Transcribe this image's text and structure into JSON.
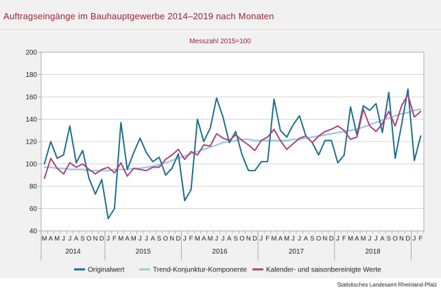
{
  "title": "Auftragseingänge im Bauhauptgewerbe 2014–2019 nach Monaten",
  "source": "Statistisches Landesamt Rheinland-Pfalz",
  "chart_data": {
    "type": "line",
    "subtitle": "Messzahl 2015=100",
    "ylim": [
      40,
      200
    ],
    "yticks": [
      40,
      60,
      80,
      100,
      120,
      140,
      160,
      180,
      200
    ],
    "grid": true,
    "legend_position": "bottom",
    "month_labels": [
      "M",
      "A",
      "M",
      "J",
      "J",
      "A",
      "S",
      "O",
      "N",
      "D",
      "J",
      "F",
      "M",
      "A",
      "M",
      "J",
      "J",
      "A",
      "S",
      "O",
      "N",
      "D",
      "J",
      "F",
      "M",
      "A",
      "M",
      "J",
      "J",
      "A",
      "S",
      "O",
      "N",
      "D",
      "J",
      "F",
      "M",
      "A",
      "M",
      "J",
      "J",
      "A",
      "S",
      "O",
      "N",
      "D",
      "J",
      "F",
      "M",
      "A",
      "M",
      "J",
      "J",
      "A",
      "S",
      "O",
      "N",
      "D",
      "J",
      "F"
    ],
    "year_labels": [
      {
        "label": "2014",
        "start": 0,
        "end": 10
      },
      {
        "label": "2015",
        "start": 10,
        "end": 22
      },
      {
        "label": "2016",
        "start": 22,
        "end": 34
      },
      {
        "label": "2017",
        "start": 34,
        "end": 46
      },
      {
        "label": "2018",
        "start": 46,
        "end": 58
      }
    ],
    "series": [
      {
        "name": "Originalwert",
        "color": "#1f6f8b",
        "values": [
          100,
          120,
          105,
          108,
          134,
          101,
          112,
          87,
          73,
          86,
          51,
          60,
          137,
          95,
          110,
          123,
          110,
          102,
          106,
          90,
          96,
          109,
          67,
          77,
          140,
          120,
          132,
          159,
          142,
          119,
          129,
          108,
          94,
          94,
          102,
          102,
          158,
          130,
          124,
          135,
          143,
          125,
          119,
          108,
          121,
          121,
          101,
          108,
          151,
          126,
          152,
          148,
          154,
          128,
          164,
          105,
          135,
          167,
          103,
          125
        ]
      },
      {
        "name": "Trend-Konjunktur-Komponente",
        "color": "#9ecae1",
        "values": [
          97,
          97,
          96,
          96,
          95,
          95,
          95,
          94,
          94,
          94,
          94,
          95,
          95,
          95,
          96,
          96,
          97,
          98,
          99,
          101,
          103,
          105,
          107,
          109,
          111,
          113,
          115,
          117,
          119,
          120,
          121,
          122,
          122,
          121,
          121,
          121,
          121,
          121,
          121,
          122,
          122,
          123,
          124,
          125,
          126,
          127,
          128,
          129,
          130,
          131,
          133,
          135,
          137,
          139,
          141,
          143,
          145,
          146,
          148,
          149
        ]
      },
      {
        "name": "Kalender- und saisonbereinigte Werte",
        "color": "#a8457a",
        "values": [
          87,
          105,
          96,
          91,
          101,
          97,
          100,
          95,
          91,
          95,
          97,
          92,
          101,
          89,
          96,
          95,
          94,
          97,
          97,
          104,
          108,
          113,
          104,
          111,
          108,
          117,
          116,
          127,
          123,
          121,
          126,
          121,
          117,
          112,
          121,
          124,
          131,
          121,
          113,
          118,
          123,
          125,
          119,
          125,
          129,
          131,
          134,
          130,
          122,
          124,
          149,
          134,
          129,
          136,
          147,
          134,
          152,
          162,
          142,
          147
        ]
      }
    ]
  }
}
